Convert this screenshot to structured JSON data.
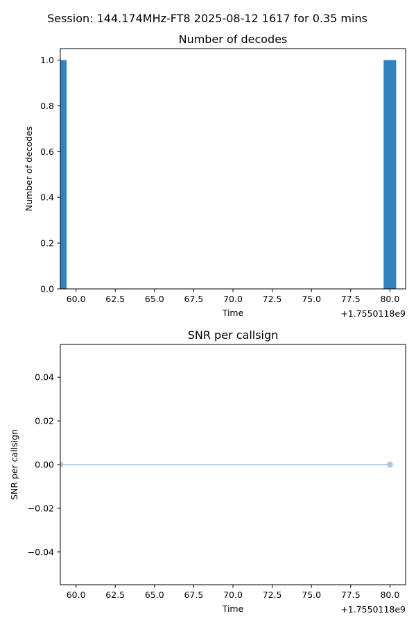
{
  "suptitle": "Session: 144.174MHz-FT8 2025-08-12 1617 for 0.35 mins",
  "chart_data": [
    {
      "type": "bar",
      "title": "Number of decodes",
      "xlabel": "Time",
      "ylabel": "Number of decodes",
      "x_offset_label": "+1.7550118e9",
      "xlim": [
        59.0,
        81.0
      ],
      "ylim": [
        0.0,
        1.05
      ],
      "x_ticks": [
        60.0,
        62.5,
        65.0,
        67.5,
        70.0,
        72.5,
        75.0,
        77.5,
        80.0
      ],
      "x_tick_labels": [
        "60.0",
        "62.5",
        "65.0",
        "67.5",
        "70.0",
        "72.5",
        "75.0",
        "77.5",
        "80.0"
      ],
      "y_ticks": [
        0.0,
        0.2,
        0.4,
        0.6,
        0.8,
        1.0
      ],
      "y_tick_labels": [
        "0.0",
        "0.2",
        "0.4",
        "0.6",
        "0.8",
        "1.0"
      ],
      "bar_color": "#3182bd",
      "bars": [
        {
          "x_start": 59.0,
          "x_end": 59.4,
          "value": 1
        },
        {
          "x_start": 79.6,
          "x_end": 80.4,
          "value": 1
        }
      ]
    },
    {
      "type": "line",
      "title": "SNR per callsign",
      "xlabel": "Time",
      "ylabel": "SNR per callsign",
      "x_offset_label": "+1.7550118e9",
      "xlim": [
        59.0,
        81.0
      ],
      "ylim": [
        -0.055,
        0.055
      ],
      "x_ticks": [
        60.0,
        62.5,
        65.0,
        67.5,
        70.0,
        72.5,
        75.0,
        77.5,
        80.0
      ],
      "x_tick_labels": [
        "60.0",
        "62.5",
        "65.0",
        "67.5",
        "70.0",
        "72.5",
        "75.0",
        "77.5",
        "80.0"
      ],
      "y_ticks": [
        0.04,
        0.02,
        0.0,
        -0.02,
        -0.04
      ],
      "y_tick_labels": [
        "0.04",
        "0.02",
        "0.00",
        "−0.02",
        "−0.04"
      ],
      "line_color": "#aec7e8",
      "series": [
        {
          "x": [
            59.0,
            80.0
          ],
          "values": [
            0.0,
            0.0
          ]
        }
      ]
    }
  ]
}
